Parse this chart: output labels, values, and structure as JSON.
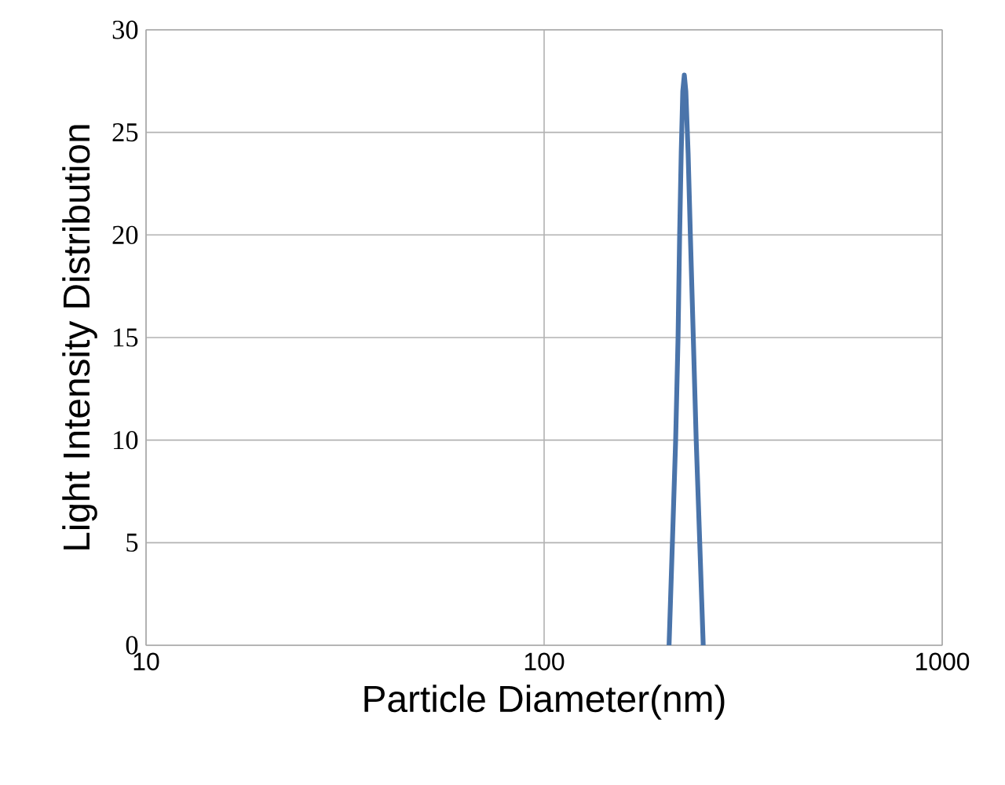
{
  "chart_data": {
    "type": "line",
    "xlabel": "Particle Diameter(nm)",
    "ylabel": "Light Intensity Distribution",
    "log": "x",
    "grid": true,
    "marker": "none",
    "line_style": "solid",
    "xlim": [
      10,
      1000
    ],
    "xticks": [
      10,
      100,
      1000
    ],
    "ylim": [
      0,
      30
    ],
    "yticks": [
      0,
      5,
      10,
      15,
      20,
      25,
      30
    ],
    "series": [
      {
        "color": "#4a74aa",
        "x": [
          206,
          210,
          214,
          217,
          219,
          221,
          223,
          225,
          227,
          230,
          233,
          237,
          241,
          246,
          251
        ],
        "values": [
          0,
          5,
          10,
          15,
          20,
          24,
          27,
          27.8,
          27,
          24,
          20,
          15,
          10,
          5,
          0
        ]
      }
    ]
  }
}
